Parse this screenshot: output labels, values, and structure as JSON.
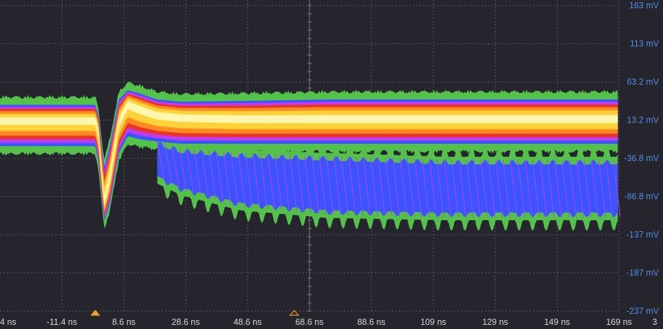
{
  "chart_data": {
    "type": "line",
    "title": "",
    "xlabel": "",
    "ylabel": "",
    "x_unit": "ns",
    "y_unit": "mV",
    "x_ticks": [
      "4 ns",
      "-11.4 ns",
      "8.6 ns",
      "28.6 ns",
      "48.6 ns",
      "68.6 ns",
      "88.6 ns",
      "109 ns",
      "129 ns",
      "149 ns",
      "169 ns",
      "3"
    ],
    "y_ticks": [
      "163 mV",
      "113 mV",
      "63.2 mV",
      "13.2 mV",
      "-36.8 mV",
      "-86.8 mV",
      "-137 mV",
      "-187 mV",
      "-237 mV"
    ],
    "xlim": [
      -31.4,
      179
    ],
    "ylim": [
      -237,
      163
    ],
    "grid": true,
    "display": "persistence (color-graded)",
    "trigger_markers_x": [
      1,
      68.6
    ],
    "band_colors": [
      "#54c24a",
      "#3a55ff",
      "#c03cf0",
      "#e8342a",
      "#ff8a20",
      "#ffd23a",
      "#fff6b0"
    ],
    "series": [
      {
        "role": "baseline band",
        "x": [
          -31.4,
          1,
          2,
          4,
          6,
          9,
          12,
          16,
          22,
          30,
          50,
          80,
          120,
          179
        ],
        "upper": [
          33,
          33,
          20,
          -50,
          -20,
          40,
          52,
          48,
          40,
          37,
          38,
          40,
          40,
          40
        ],
        "center": [
          13,
          13,
          0,
          -95,
          -60,
          10,
          35,
          28,
          20,
          17,
          15,
          15,
          15,
          15
        ],
        "lower": [
          -21,
          -21,
          -40,
          -120,
          -95,
          -30,
          -8,
          -12,
          -15,
          -18,
          -18,
          -18,
          -18,
          -18
        ]
      },
      {
        "role": "ringing envelope",
        "x": [
          -31.4,
          22,
          30,
          50,
          80,
          120,
          179
        ],
        "upper": [
          -20,
          -20,
          -30,
          -36,
          -40,
          -45,
          -45
        ],
        "lower": [
          -60,
          -60,
          -75,
          -95,
          -105,
          -108,
          -108
        ]
      }
    ]
  }
}
